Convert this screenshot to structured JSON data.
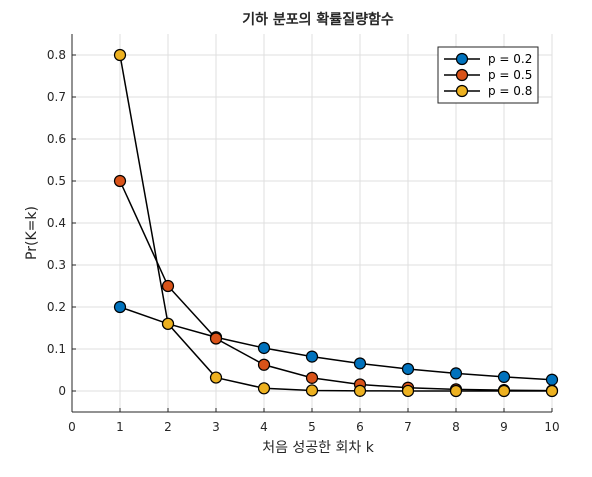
{
  "chart_data": {
    "type": "line",
    "title": "기하 분포의 확률질량함수",
    "xlabel": "처음 성공한 회차 k",
    "ylabel": "Pr(K=k)",
    "xlim": [
      0,
      10
    ],
    "ylim": [
      -0.05,
      0.85
    ],
    "xticks": [
      "0",
      "1",
      "2",
      "3",
      "4",
      "5",
      "6",
      "7",
      "8",
      "9",
      "10"
    ],
    "yticks": [
      "0",
      "0.1",
      "0.2",
      "0.3",
      "0.4",
      "0.5",
      "0.6",
      "0.7",
      "0.8"
    ],
    "grid": true,
    "legend_position": "top-right",
    "x": [
      1,
      2,
      3,
      4,
      5,
      6,
      7,
      8,
      9,
      10
    ],
    "series": [
      {
        "name": "p = 0.2",
        "color": "#0072bd",
        "values": [
          0.2,
          0.16,
          0.128,
          0.1024,
          0.0819,
          0.0655,
          0.0524,
          0.0419,
          0.0336,
          0.0268
        ]
      },
      {
        "name": "p = 0.5",
        "color": "#d95319",
        "values": [
          0.5,
          0.25,
          0.125,
          0.0625,
          0.0313,
          0.0156,
          0.0078,
          0.0039,
          0.002,
          0.001
        ]
      },
      {
        "name": "p = 0.8",
        "color": "#edb120",
        "values": [
          0.8,
          0.16,
          0.032,
          0.0064,
          0.0013,
          0.0003,
          0.0001,
          0.0,
          0.0,
          0.0
        ]
      }
    ]
  }
}
